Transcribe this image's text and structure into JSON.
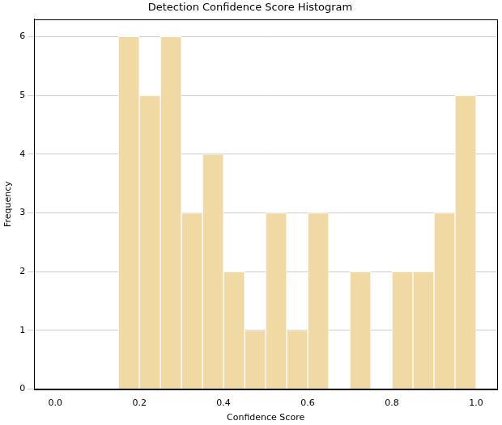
{
  "chart_data": {
    "type": "histogram",
    "title": "Detection Confidence Score Histogram",
    "x_label": "Confidence Score",
    "y_label": "Frequency",
    "bins": [
      0.15,
      0.2,
      0.25,
      0.3,
      0.35,
      0.4,
      0.45,
      0.5,
      0.55,
      0.6,
      0.65,
      0.7,
      0.75,
      0.8,
      0.85,
      0.9,
      0.95,
      1.0
    ],
    "counts": [
      6,
      5,
      6,
      3,
      4,
      2,
      1,
      3,
      1,
      3,
      0,
      2,
      0,
      2,
      2,
      3,
      5
    ],
    "color": "#f0d9a3",
    "xlim": [
      -0.05,
      1.05
    ],
    "xticks": [
      {
        "value": 0,
        "label": "0.0"
      },
      {
        "value": 0.2,
        "label": "0.2"
      },
      {
        "value": 0.4,
        "label": "0.4"
      },
      {
        "value": 0.6,
        "label": "0.6"
      },
      {
        "value": 0.8,
        "label": "0.8"
      },
      {
        "value": 1.0,
        "label": "1.0"
      }
    ],
    "ylim": [
      0,
      6.3
    ],
    "yticks": [
      0,
      1,
      2,
      3,
      4,
      5,
      6
    ],
    "grid": true
  }
}
